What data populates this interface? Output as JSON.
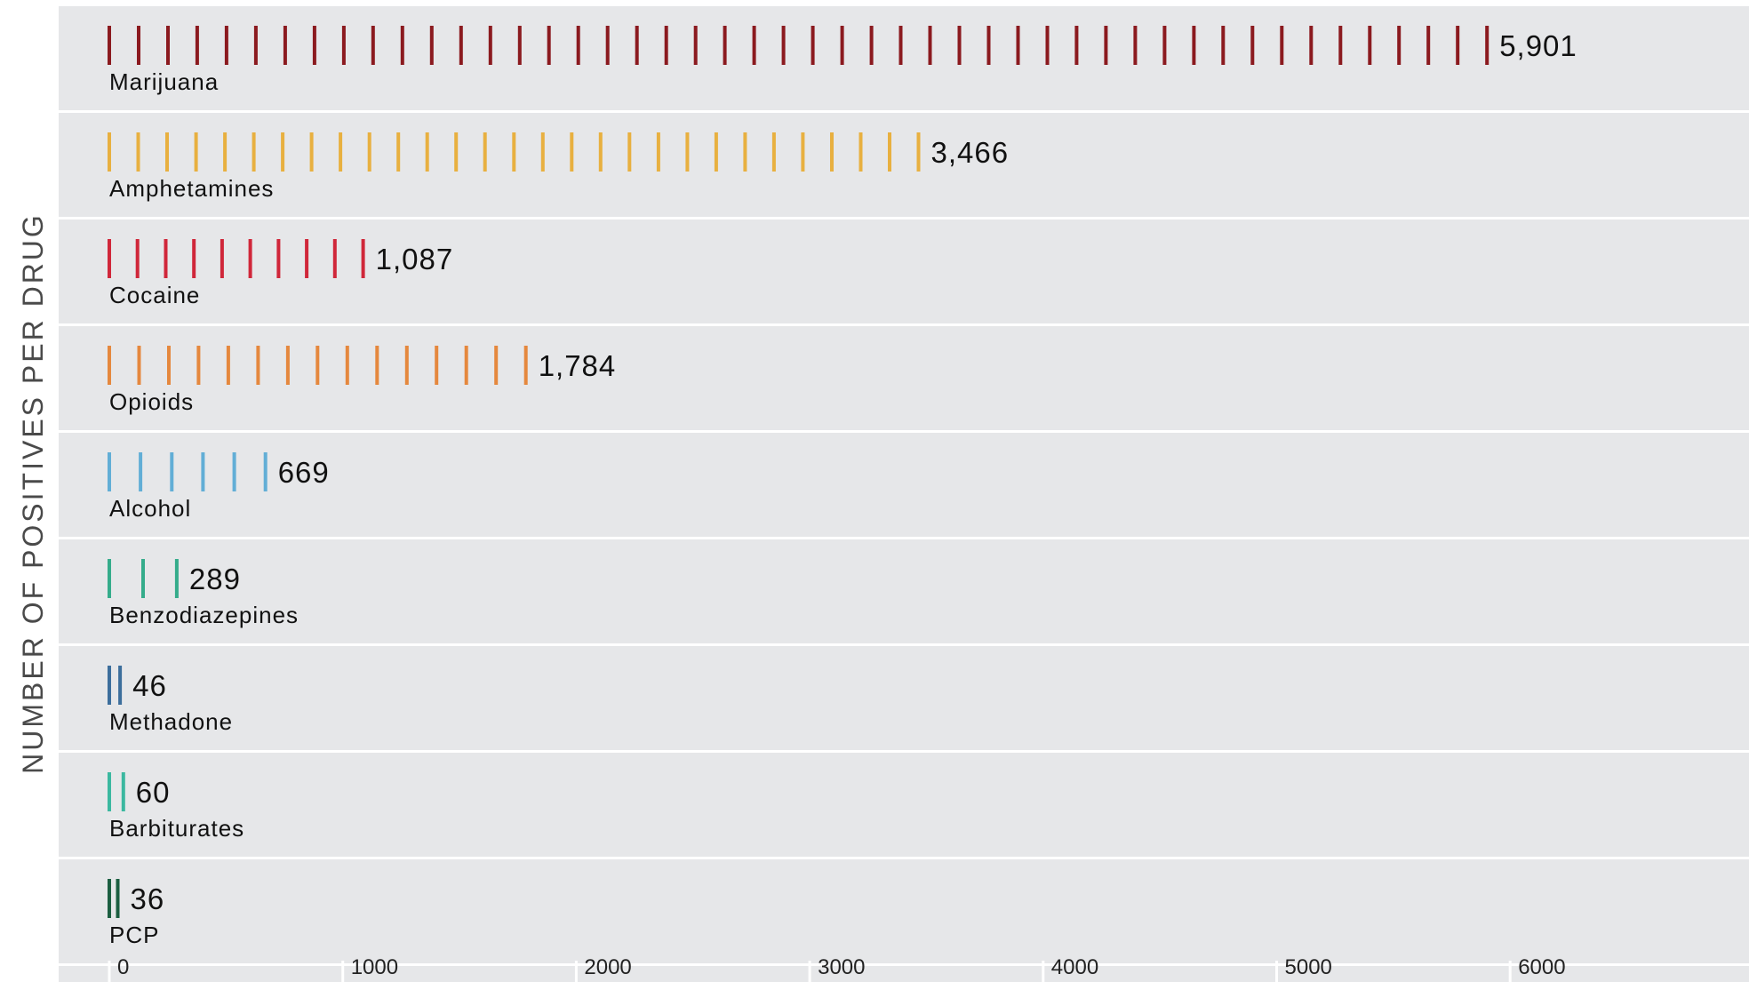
{
  "chart_data": {
    "type": "bar",
    "ylabel": "NUMBER OF POSITIVES PER DRUG",
    "categories": [
      "Marijuana",
      "Amphetamines",
      "Cocaine",
      "Opioids",
      "Alcohol",
      "Benzodiazepines",
      "Methadone",
      "Barbiturates",
      "PCP"
    ],
    "values": [
      5901,
      3466,
      1087,
      1784,
      669,
      289,
      46,
      60,
      36
    ],
    "value_labels": [
      "5,901",
      "3,466",
      "1,087",
      "1,784",
      "669",
      "289",
      "46",
      "60",
      "36"
    ],
    "colors": [
      "#8B1A1F",
      "#E8B040",
      "#D0273A",
      "#E5883E",
      "#62AED6",
      "#35AC8B",
      "#3C6E9C",
      "#3BB8A0",
      "#1B5E40"
    ],
    "xticks": [
      0,
      1000,
      2000,
      3000,
      4000,
      5000,
      6000
    ],
    "xtick_labels": [
      "0",
      "1000",
      "2000",
      "3000",
      "4000",
      "5000",
      "6000"
    ],
    "xlim": [
      0,
      7000
    ],
    "grid": false
  }
}
